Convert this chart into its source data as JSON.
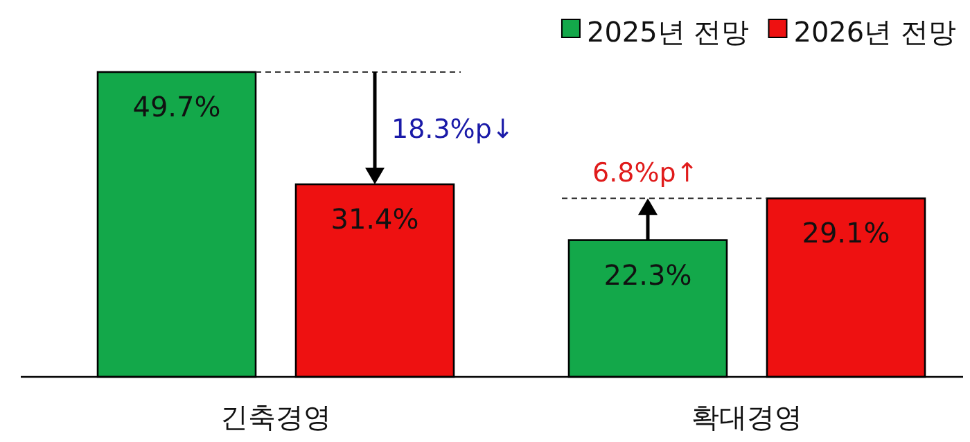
{
  "chart_data": {
    "type": "bar",
    "categories": [
      "긴축경영",
      "확대경영"
    ],
    "series": [
      {
        "name": "2025년 전망",
        "color": "#13a84a",
        "values": [
          49.7,
          22.3
        ],
        "value_labels": [
          "49.7%",
          "22.3%"
        ]
      },
      {
        "name": "2026년 전망",
        "color": "#ee1111",
        "values": [
          31.4,
          29.1
        ],
        "value_labels": [
          "31.4%",
          "29.1%"
        ]
      }
    ],
    "legend": "top right",
    "annotations": [
      "18.3%p↓",
      "6.8%p↑"
    ]
  }
}
